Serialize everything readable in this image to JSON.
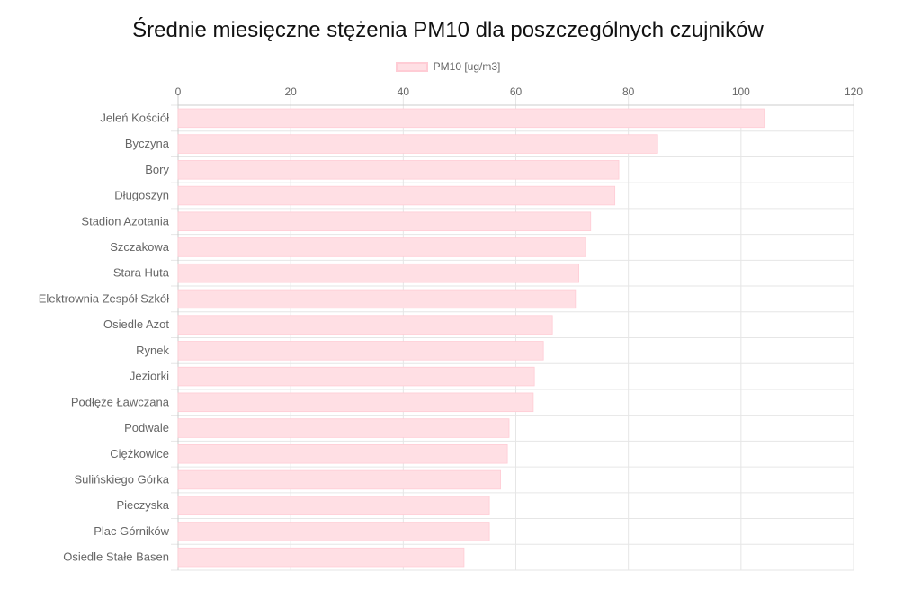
{
  "chart_data": {
    "type": "bar",
    "orientation": "horizontal",
    "title": "Średnie miesięczne stężenia PM10 dla poszczególnych czujników",
    "legend": {
      "position": "top",
      "entries": [
        "PM10 [ug/m3]"
      ]
    },
    "xlim": [
      0,
      120
    ],
    "xticks": [
      0,
      20,
      40,
      60,
      80,
      100,
      120
    ],
    "grid": true,
    "categories": [
      "Jeleń Kościół",
      "Byczyna",
      "Bory",
      "Długoszyn",
      "Stadion Azotania",
      "Szczakowa",
      "Stara Huta",
      "Elektrownia Zespół Szkół",
      "Osiedle Azot",
      "Rynek",
      "Jeziorki",
      "Podłęże Ławczana",
      "Podwale",
      "Ciężkowice",
      "Sulińskiego Górka",
      "Pieczyska",
      "Plac Górników",
      "Osiedle Stałe Basen"
    ],
    "series": [
      {
        "name": "PM10 [ug/m3]",
        "values": [
          104.1,
          85.2,
          78.3,
          77.6,
          73.3,
          72.4,
          71.2,
          70.6,
          66.5,
          64.9,
          63.3,
          63.1,
          58.8,
          58.5,
          57.3,
          55.3,
          55.3,
          50.8
        ]
      }
    ],
    "colors": {
      "bar_fill": "#ffdfe4",
      "bar_border": "#ffccd5",
      "grid": "#e6e6e6",
      "tick_text": "#666666"
    }
  }
}
